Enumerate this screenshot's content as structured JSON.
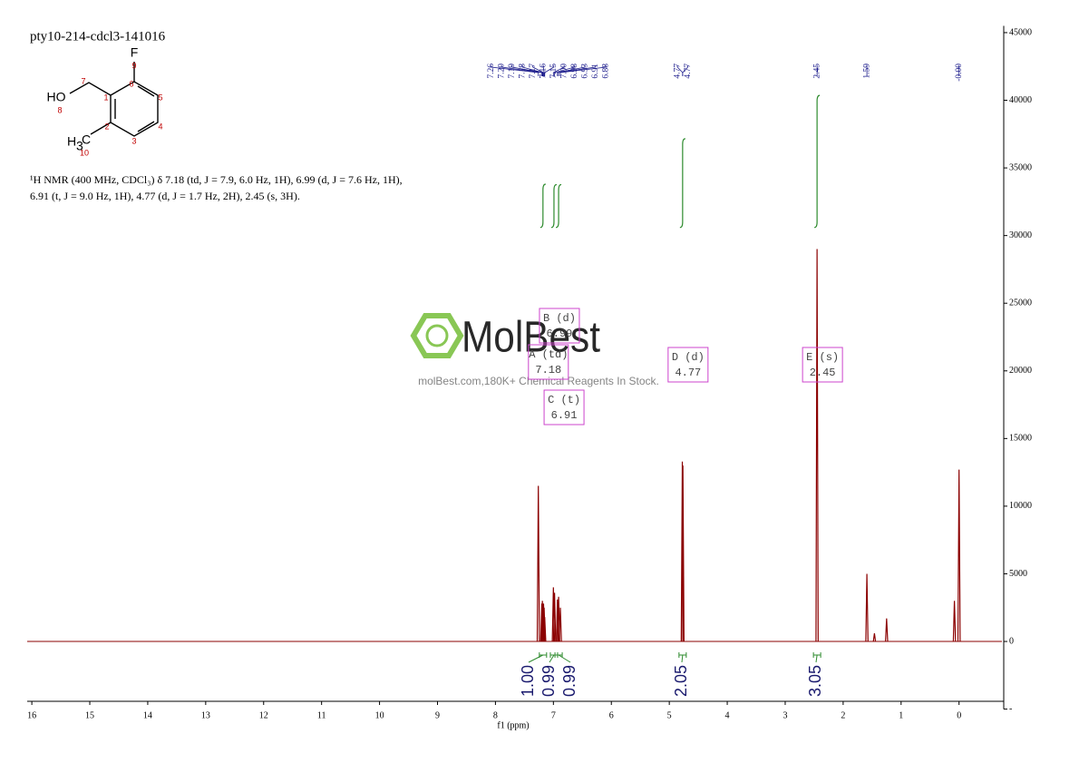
{
  "chart_data": {
    "type": "spectrum",
    "title": "pty10-214-cdcl3-141016",
    "xlabel": "f1 (ppm)",
    "xlim": [
      16.08,
      -0.74
    ],
    "xticks": [
      16,
      15,
      14,
      13,
      12,
      11,
      10,
      9,
      8,
      7,
      6,
      5,
      4,
      3,
      2,
      1,
      0
    ],
    "ylim": [
      -5000,
      45500
    ],
    "yticks": [
      {
        "value": -5000,
        "label": "-"
      },
      0,
      5000,
      10000,
      15000,
      20000,
      25000,
      30000,
      35000,
      40000,
      45000
    ],
    "color": "#8b0000",
    "x": [
      7.26,
      7.2,
      7.19,
      7.18,
      7.17,
      7.16,
      7.15,
      7.0,
      6.98,
      6.93,
      6.91,
      6.88,
      4.775,
      4.765,
      2.45,
      1.59,
      1.46,
      1.25,
      0.08,
      0.0
    ],
    "values": [
      11500,
      2800,
      3000,
      2600,
      2800,
      2500,
      1800,
      4000,
      3600,
      3100,
      3300,
      2500,
      13300,
      13000,
      29000,
      5000,
      600,
      1700,
      3000,
      12700
    ],
    "peak_labels": [
      7.26,
      {
        "value": 7.2,
        "label": "7.20"
      },
      7.19,
      7.18,
      7.17,
      7.16,
      7.15,
      {
        "value": 7.0,
        "label": "7.00"
      },
      6.98,
      6.93,
      6.91,
      6.88,
      4.77,
      4.77,
      2.45,
      1.59,
      {
        "value": 0,
        "label": "-0.00"
      }
    ],
    "multiplets": [
      {
        "name": "A (td)",
        "shift": 7.18
      },
      {
        "name": "B (d)",
        "shift": 6.99
      },
      {
        "name": "C (t)",
        "shift": 6.91
      },
      {
        "name": "D (d)",
        "shift": 4.77
      },
      {
        "name": "E (s)",
        "shift": 2.45
      }
    ],
    "integrals": [
      {
        "value": 1,
        "label": "1.00"
      },
      0.99,
      0.99,
      2.05,
      3.05
    ],
    "integral_color": "#2e8b2e",
    "description": [
      "¹H NMR (400 MHz, CDCl₃) δ 7.18 (td, J = 7.9, 6.0 Hz, 1H), 6.99 (d, J = 7.6 Hz, 1H),",
      "6.91 (t, J = 9.0 Hz, 1H), 4.77 (d, J = 1.7 Hz, 2H), 2.45 (s, 3H)."
    ],
    "structure": {
      "labels": [
        "F",
        "9",
        "HO",
        "8",
        "7",
        "1",
        "6",
        "5",
        "4",
        "3",
        "2",
        "H",
        "3",
        "C",
        "10"
      ]
    },
    "watermark": {
      "brand": "MolBest",
      "tagline": "molBest.com,180K+ Chemical Reagents In Stock."
    }
  }
}
